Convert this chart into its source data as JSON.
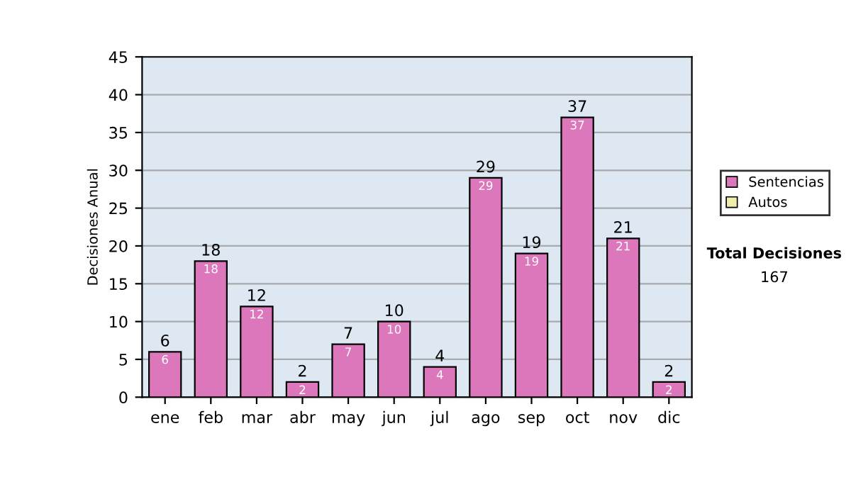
{
  "chart_data": {
    "type": "bar",
    "stacked": true,
    "ylabel": "Decisiones Anual",
    "categories": [
      "ene",
      "feb",
      "mar",
      "abr",
      "may",
      "jun",
      "jul",
      "ago",
      "sep",
      "oct",
      "nov",
      "dic"
    ],
    "series": [
      {
        "name": "Sentencias",
        "color": "#dd77bb",
        "values": [
          6,
          18,
          12,
          2,
          7,
          10,
          4,
          29,
          19,
          37,
          21,
          2
        ]
      },
      {
        "name": "Autos",
        "color": "#eeeeaa",
        "values": [
          null,
          null,
          null,
          null,
          null,
          null,
          null,
          null,
          null,
          null,
          null,
          null
        ]
      }
    ],
    "totals": [
      "6",
      "18",
      "12",
      "2",
      "7",
      "10",
      "4",
      "29",
      "19",
      "37",
      "21",
      "2"
    ],
    "data_labels": true,
    "ylim": [
      0,
      45
    ],
    "yticks": [
      0,
      5,
      10,
      15,
      20,
      25,
      30,
      35,
      40,
      45
    ],
    "grid": "y",
    "legend": "right",
    "annotations": [
      "Total Decisiones",
      "167"
    ]
  }
}
